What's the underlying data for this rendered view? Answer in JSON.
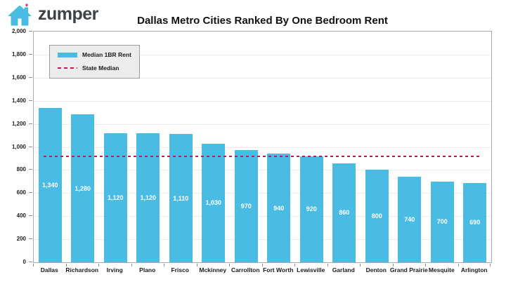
{
  "logo": {
    "brand": "zumper",
    "house_color": "#4ABCE4",
    "heart_color": "#ED3F6F",
    "text_color": "#3D4247"
  },
  "title": "Dallas Metro Cities Ranked By One Bedroom Rent",
  "legend": {
    "items": [
      {
        "label": "Median 1BR Rent",
        "type": "bar",
        "color": "#4ABCE4"
      },
      {
        "label": "State Median",
        "type": "dashed-line",
        "color": "#C2185B"
      }
    ]
  },
  "chart_data": {
    "type": "bar",
    "title": "Dallas Metro Cities Ranked By One Bedroom Rent",
    "series_name": "Median 1BR Rent",
    "categories": [
      "Dallas",
      "Richardson",
      "Irving",
      "Plano",
      "Frisco",
      "Mckinney",
      "Carrollton",
      "Fort Worth",
      "Lewisville",
      "Garland",
      "Denton",
      "Grand Prairie",
      "Mesquite",
      "Arlington"
    ],
    "values": [
      1340,
      1280,
      1120,
      1120,
      1110,
      1030,
      970,
      940,
      920,
      860,
      800,
      740,
      700,
      690
    ],
    "value_labels": [
      "1,340",
      "1,280",
      "1,120",
      "1,120",
      "1,110",
      "1,030",
      "970",
      "940",
      "920",
      "860",
      "800",
      "740",
      "700",
      "690"
    ],
    "state_median": 920,
    "ylim": [
      0,
      2000
    ],
    "ytick_step": 200,
    "ytick_labels": [
      "0",
      "200",
      "400",
      "600",
      "800",
      "1,000",
      "1,200",
      "1,400",
      "1,600",
      "1,800",
      "2,000"
    ],
    "grid": true,
    "legend_position": "top-left",
    "bar_color": "#4ABCE4",
    "median_line_color": "#C2185B",
    "value_label_color": "#FFFFFF"
  }
}
